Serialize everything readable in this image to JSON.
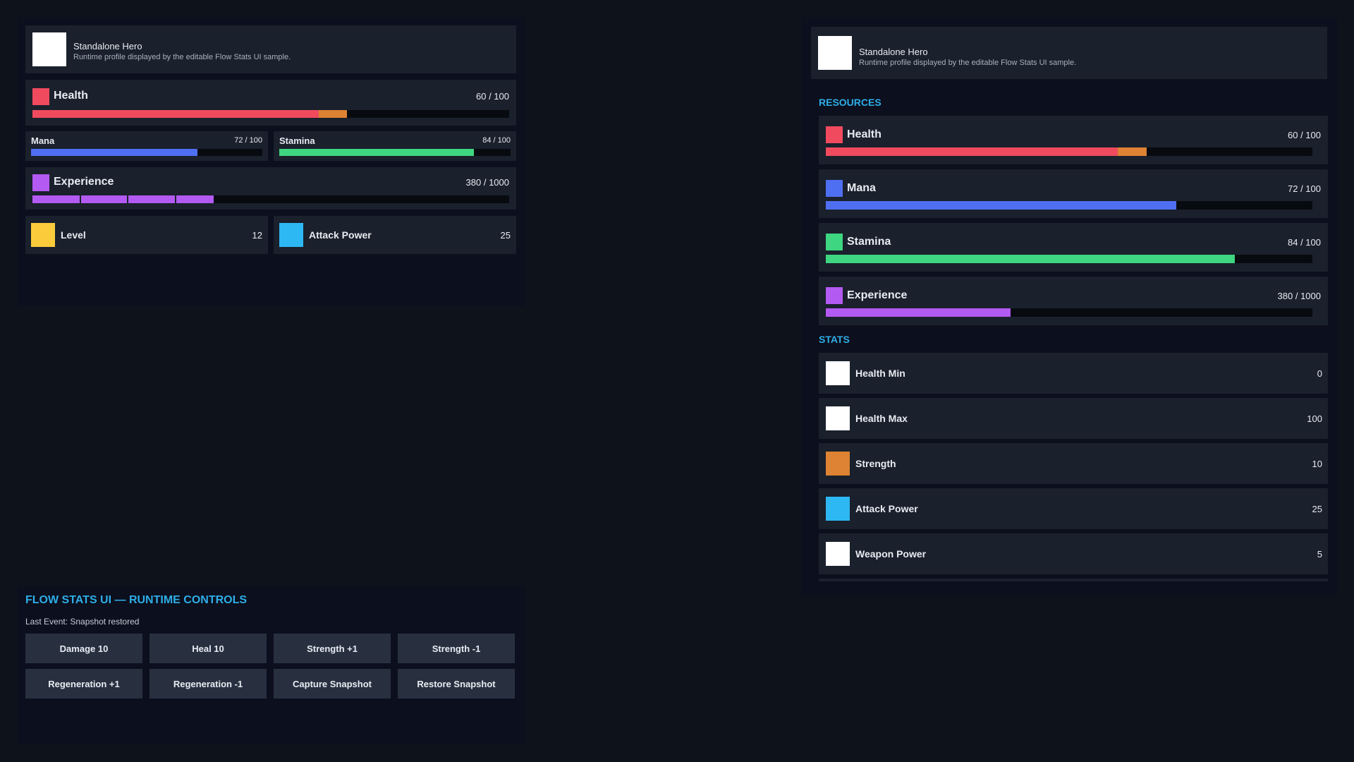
{
  "colors": {
    "health": "#f04a5e",
    "health_regen": "#dd8333",
    "mana": "#4f6ff2",
    "stamina": "#3ed680",
    "experience": "#b35af2",
    "level": "#fbcb3c",
    "attack_power": "#2db8f3",
    "strength": "#dd8333",
    "neutral": "#ffffff"
  },
  "compact": {
    "profile": {
      "name": "Standalone Hero",
      "description": "Runtime profile displayed by the editable Flow Stats UI sample.",
      "portrait_icon": "portrait-placeholder-icon"
    },
    "health": {
      "label": "Health",
      "value": "60 / 100",
      "current": 60,
      "max": 100,
      "regen_overlay": 6
    },
    "mana": {
      "label": "Mana",
      "value": "72 / 100",
      "current": 72,
      "max": 100
    },
    "stamina": {
      "label": "Stamina",
      "value": "84 / 100",
      "current": 84,
      "max": 100
    },
    "experience": {
      "label": "Experience",
      "value": "380 / 1000",
      "current": 380,
      "max": 1000,
      "segments": 10
    },
    "level": {
      "label": "Level",
      "value": "12"
    },
    "attack_power": {
      "label": "Attack Power",
      "value": "25"
    }
  },
  "detail": {
    "profile": {
      "name": "Standalone Hero",
      "description": "Runtime profile displayed by the editable Flow Stats UI sample.",
      "portrait_icon": "portrait-placeholder-icon"
    },
    "resources_header": "RESOURCES",
    "resources": [
      {
        "label": "Health",
        "value": "60 / 100",
        "current": 60,
        "max": 100,
        "regen_overlay": 6,
        "color": "#f04a5e"
      },
      {
        "label": "Mana",
        "value": "72 / 100",
        "current": 72,
        "max": 100,
        "color": "#4f6ff2"
      },
      {
        "label": "Stamina",
        "value": "84 / 100",
        "current": 84,
        "max": 100,
        "color": "#3ed680"
      },
      {
        "label": "Experience",
        "value": "380 / 1000",
        "current": 380,
        "max": 1000,
        "color": "#b35af2"
      }
    ],
    "stats_header": "STATS",
    "stats": [
      {
        "label": "Health Min",
        "value": "0",
        "color": "#ffffff"
      },
      {
        "label": "Health Max",
        "value": "100",
        "color": "#ffffff"
      },
      {
        "label": "Strength",
        "value": "10",
        "color": "#dd8333"
      },
      {
        "label": "Attack Power",
        "value": "25",
        "color": "#2db8f3"
      },
      {
        "label": "Weapon Power",
        "value": "5",
        "color": "#ffffff"
      }
    ]
  },
  "controls": {
    "title": "FLOW STATS UI — RUNTIME CONTROLS",
    "last_event": "Last Event: Snapshot restored",
    "buttons": [
      "Damage 10",
      "Heal 10",
      "Strength +1",
      "Strength -1",
      "Regeneration +1",
      "Regeneration -1",
      "Capture Snapshot",
      "Restore Snapshot"
    ]
  }
}
